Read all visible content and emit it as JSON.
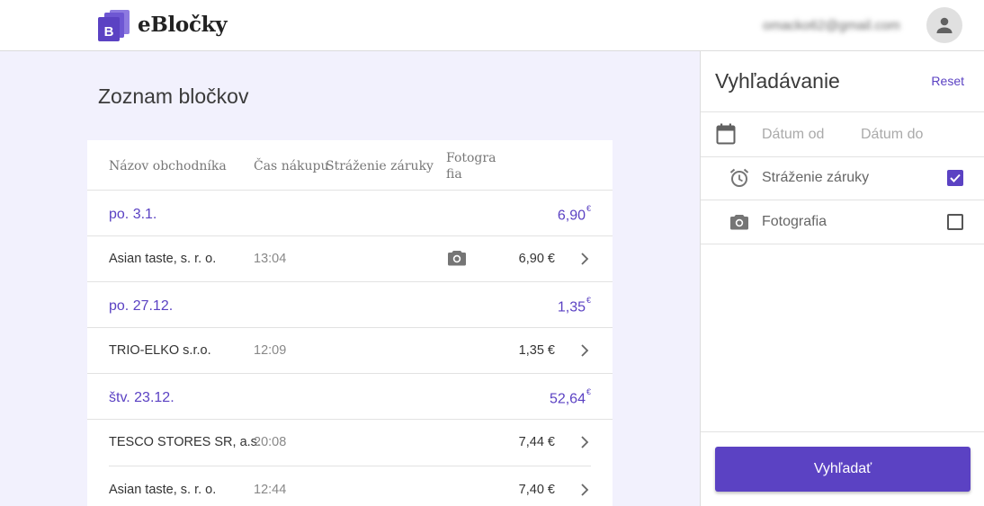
{
  "header": {
    "brand": "eBločky",
    "email": "omacko62@gmail.com"
  },
  "main": {
    "title": "Zoznam bločkov",
    "columns": {
      "merchant": "Názov obchodníka",
      "time": "Čas nákupu",
      "warranty": "Stráženie záruky",
      "photo_line1": "Fotogra",
      "photo_line2": "fia"
    },
    "groups": [
      {
        "date": "po. 3.1.",
        "total": "6,90",
        "currency": "€",
        "items": [
          {
            "name": "Asian taste, s. r. o.",
            "time": "13:04",
            "price": "6,90 €",
            "has_photo": true
          }
        ]
      },
      {
        "date": "po. 27.12.",
        "total": "1,35",
        "currency": "€",
        "items": [
          {
            "name": "TRIO-ELKO s.r.o.",
            "time": "12:09",
            "price": "1,35 €",
            "has_photo": false
          }
        ]
      },
      {
        "date": "štv. 23.12.",
        "total": "52,64",
        "currency": "€",
        "items": [
          {
            "name": "TESCO STORES SR, a.s.",
            "time": "20:08",
            "price": "7,44 €",
            "has_photo": false
          },
          {
            "name": "Asian taste, s. r. o.",
            "time": "12:44",
            "price": "7,40 €",
            "has_photo": false
          }
        ]
      }
    ]
  },
  "search": {
    "title": "Vyhľadávanie",
    "reset": "Reset",
    "date_from": "Dátum od",
    "date_to": "Dátum do",
    "filters": [
      {
        "label": "Stráženie záruky",
        "icon": "alarm-clock-icon",
        "checked": true
      },
      {
        "label": "Fotografia",
        "icon": "camera-icon",
        "checked": false
      }
    ],
    "button": "Vyhľadať"
  },
  "colors": {
    "accent": "#5b42c3",
    "background": "#f2f1fd"
  }
}
